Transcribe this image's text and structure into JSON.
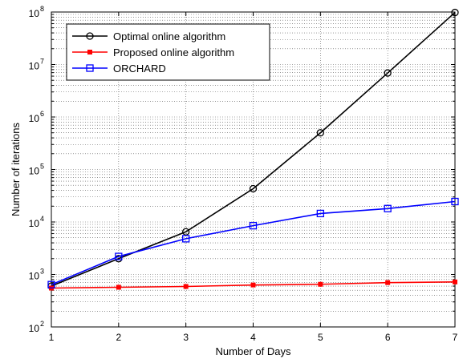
{
  "chart_data": {
    "type": "line",
    "xlabel": "Number of Days",
    "ylabel": "Number of iterations",
    "x": [
      1,
      2,
      3,
      4,
      5,
      6,
      7
    ],
    "xlim": [
      1,
      7
    ],
    "ylim": [
      100,
      100000000
    ],
    "yscale": "log",
    "grid": true,
    "legend_position": "top-left",
    "x_ticks": [
      "1",
      "2",
      "3",
      "4",
      "5",
      "6",
      "7"
    ],
    "y_tick_exponents": [
      "2",
      "3",
      "4",
      "5",
      "6",
      "7",
      "8"
    ],
    "y_tick_base": "10",
    "series": [
      {
        "name": "Optimal online algorithm",
        "values": [
          600,
          2000,
          6500,
          43000,
          500000,
          6900000,
          98000000
        ],
        "color": "#000000",
        "marker": "circle"
      },
      {
        "name": "Proposed online algorithm",
        "values": [
          550,
          570,
          590,
          630,
          650,
          700,
          720
        ],
        "color": "#ff0000",
        "marker": "filled-square"
      },
      {
        "name": "ORCHARD",
        "values": [
          640,
          2200,
          4800,
          8500,
          14500,
          18000,
          24500
        ],
        "color": "#0000ff",
        "marker": "square"
      }
    ]
  }
}
